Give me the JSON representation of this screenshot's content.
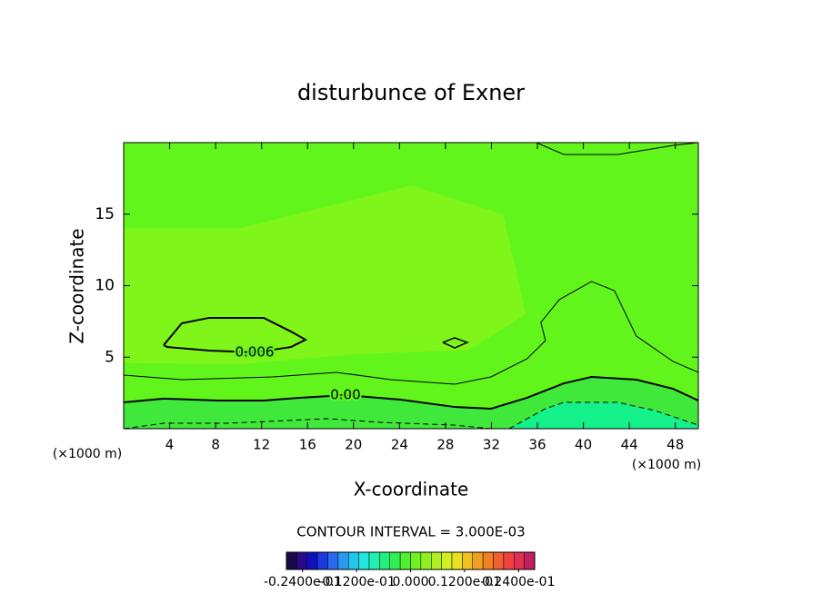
{
  "chart_data": {
    "type": "contour",
    "title": "disturbunce of Exner",
    "x_label": "X-coordinate",
    "y_label": "Z-coordinate",
    "x_unit": "(×1000 m)",
    "y_unit": "(×1000 m)",
    "xlim": [
      0,
      50
    ],
    "ylim": [
      0,
      20
    ],
    "xticks": [
      4,
      8,
      12,
      16,
      20,
      24,
      28,
      32,
      36,
      40,
      44,
      48
    ],
    "yticks": [
      5,
      10,
      15
    ],
    "background_color": "#62f51c",
    "fill_regions": [
      {
        "color": "#80f51a",
        "x": [
          0,
          10,
          25,
          33,
          35,
          30,
          20,
          10,
          0
        ],
        "y": [
          14,
          14,
          17,
          15,
          8,
          5.5,
          5.2,
          4.5,
          4.6
        ]
      },
      {
        "color": "#3fe83a",
        "x": [
          0,
          3.5,
          8.2,
          12.2,
          15.3,
          19.3,
          24.1,
          28.8,
          31.96,
          35.1,
          38.3,
          40.7,
          44.6,
          47.8,
          50,
          50,
          0
        ],
        "y": [
          1.84,
          2.1,
          1.97,
          1.97,
          2.16,
          2.35,
          2.03,
          1.52,
          1.4,
          2.16,
          3.17,
          3.62,
          3.43,
          2.79,
          1.97,
          0,
          0
        ]
      },
      {
        "color": "#14f08a",
        "x": [
          33.54,
          36.7,
          38.3,
          43.0,
          46.2,
          50,
          50
        ],
        "y": [
          0,
          1.4,
          1.84,
          1.84,
          1.27,
          0.25,
          0
        ]
      }
    ],
    "contours": [
      {
        "level": 0,
        "level_label": "0.00",
        "linewidth": 2,
        "x": [
          0,
          3.5,
          8.2,
          12.2,
          15.3,
          19.3,
          24.1,
          28.8,
          31.96,
          35.1,
          38.3,
          40.7,
          44.6,
          47.8,
          50
        ],
        "y": [
          1.84,
          2.1,
          1.97,
          1.97,
          2.16,
          2.35,
          2.03,
          1.52,
          1.4,
          2.16,
          3.17,
          3.62,
          3.43,
          2.79,
          1.97
        ]
      },
      {
        "level": 0.003,
        "linewidth": 1,
        "x": [
          0,
          5.06,
          12.97,
          18.5,
          23.26,
          28.8,
          31.96,
          35.1,
          36.7,
          36.3,
          37.9,
          40.7,
          42.7,
          44.6,
          47.8,
          50
        ],
        "y": [
          3.75,
          3.43,
          3.62,
          3.94,
          3.43,
          3.11,
          3.62,
          4.89,
          6.16,
          7.43,
          9.02,
          10.29,
          9.65,
          6.48,
          4.7,
          3.94
        ]
      },
      {
        "level": 0.006,
        "linewidth": 2,
        "labeled": true,
        "x": [
          3.48,
          5.06,
          7.44,
          12.18,
          14.56,
          15.82,
          14.56,
          11.39,
          7.44,
          3.8,
          3.48
        ],
        "y": [
          5.84,
          7.37,
          7.75,
          7.75,
          6.79,
          6.22,
          5.71,
          5.33,
          5.46,
          5.71,
          5.84
        ]
      },
      {
        "level": 0.006,
        "linewidth": 1.5,
        "x": [
          27.77,
          28.8,
          29.9,
          28.8,
          27.77
        ],
        "y": [
          6.03,
          6.35,
          6.03,
          5.65,
          6.03
        ]
      },
      {
        "level": 0.003,
        "linewidth": 1,
        "x": [
          35.9,
          38.3,
          43.0,
          47.8,
          50
        ],
        "y": [
          20,
          19.17,
          19.17,
          19.8,
          20
        ]
      },
      {
        "level": -0.003,
        "linewidth": 1,
        "x": [
          0,
          3.48,
          9.02,
          17.72,
          22.47,
          28.8,
          31.96,
          null,
          33.54,
          36.7,
          38.3,
          43.0,
          46.2,
          50
        ],
        "y": [
          0,
          0.38,
          0.38,
          0.7,
          0.44,
          0.25,
          0,
          null,
          0,
          1.4,
          1.84,
          1.84,
          1.27,
          0.25
        ]
      }
    ],
    "contour_interval_text": "CONTOUR INTERVAL = 3.000E-03",
    "colorbar": {
      "colors": [
        "#1a0a4a",
        "#2a0a8a",
        "#1010c0",
        "#1a3ae0",
        "#2a6af0",
        "#2a9af0",
        "#20c8f0",
        "#20e8e0",
        "#20f0b0",
        "#20f080",
        "#30f050",
        "#50f030",
        "#70f020",
        "#90f020",
        "#b0f020",
        "#d0f020",
        "#e8e020",
        "#f0c020",
        "#f0a020",
        "#f08020",
        "#f06030",
        "#f04040",
        "#e03050",
        "#c02060"
      ],
      "ticks": [
        {
          "value": -0.024,
          "label": "-0.2400e-01"
        },
        {
          "value": -0.012,
          "label": "-0.1200e-01"
        },
        {
          "value": 0,
          "label": "0.000"
        },
        {
          "value": 0.012,
          "label": "0.1200e-01"
        },
        {
          "value": 0.024,
          "label": "0.2400e-01"
        }
      ]
    }
  }
}
